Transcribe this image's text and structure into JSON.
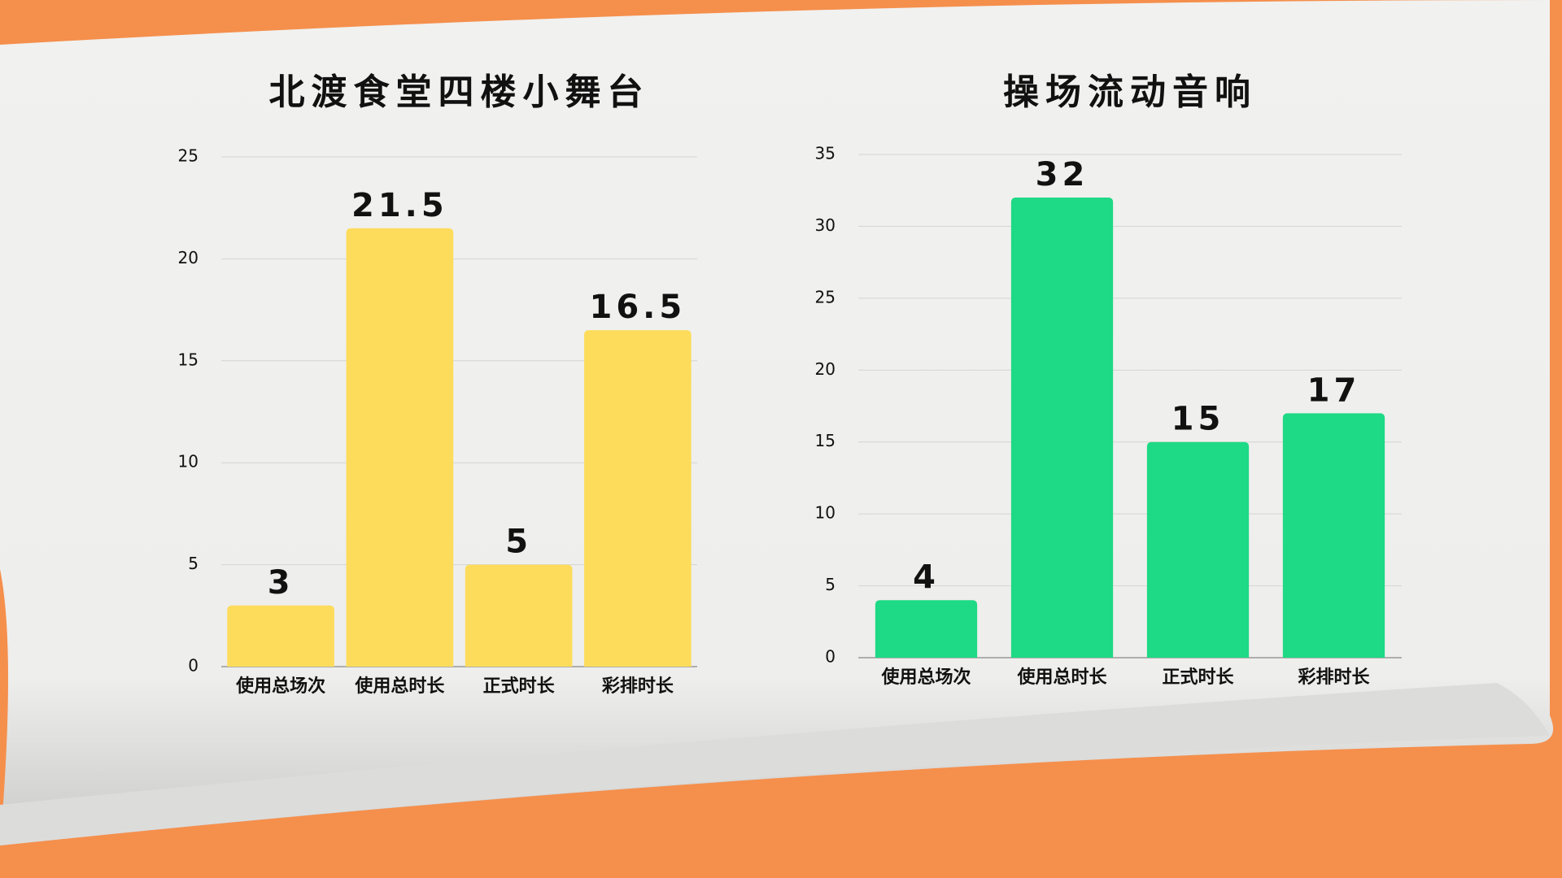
{
  "chart_data": [
    {
      "type": "bar",
      "title": "北渡食堂四楼小舞台",
      "categories": [
        "使用总场次",
        "使用总时长",
        "正式时长",
        "彩排时长"
      ],
      "values": [
        3,
        21.5,
        5,
        16.5
      ],
      "color": "#fddc5c",
      "ylim": [
        0,
        25
      ],
      "yticks": [
        0,
        5,
        10,
        15,
        20,
        25
      ],
      "grid": true
    },
    {
      "type": "bar",
      "title": "操场流动音响",
      "categories": [
        "使用总场次",
        "使用总时长",
        "正式时长",
        "彩排时长"
      ],
      "values": [
        4,
        32,
        15,
        17
      ],
      "color": "#1ed985",
      "ylim": [
        0,
        35
      ],
      "yticks": [
        0,
        5,
        10,
        15,
        20,
        25,
        30,
        35
      ],
      "grid": true
    }
  ]
}
